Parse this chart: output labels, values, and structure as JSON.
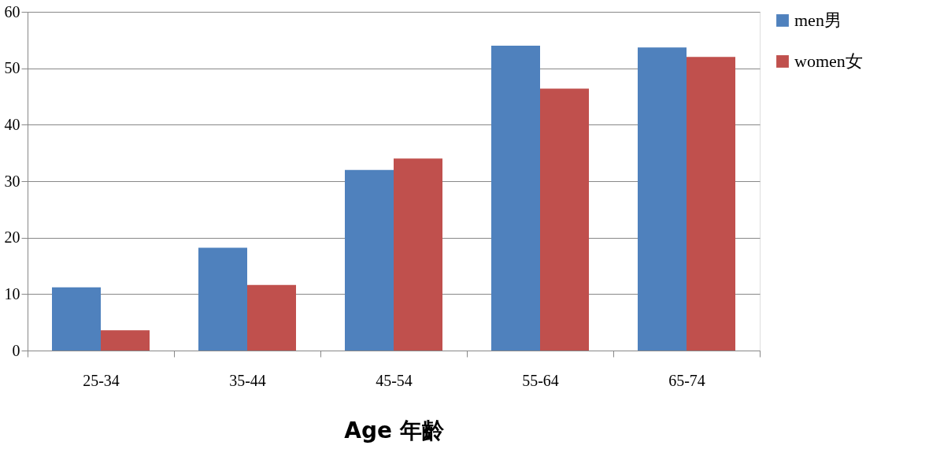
{
  "chart_data": {
    "type": "bar",
    "xlabel": "Age 年齡",
    "categories": [
      "25-34",
      "35-44",
      "45-54",
      "55-64",
      "65-74"
    ],
    "series": [
      {
        "name": "men男",
        "color": "#4f81bd",
        "values": [
          11.2,
          18.2,
          32.0,
          54.0,
          53.7
        ]
      },
      {
        "name": "women女",
        "color": "#c0504d",
        "values": [
          3.6,
          11.6,
          34.0,
          46.4,
          52.0
        ]
      }
    ],
    "ylim": [
      0,
      60
    ],
    "yticks": [
      0,
      10,
      20,
      30,
      40,
      50,
      60
    ],
    "grid": "y",
    "legend": "right"
  }
}
